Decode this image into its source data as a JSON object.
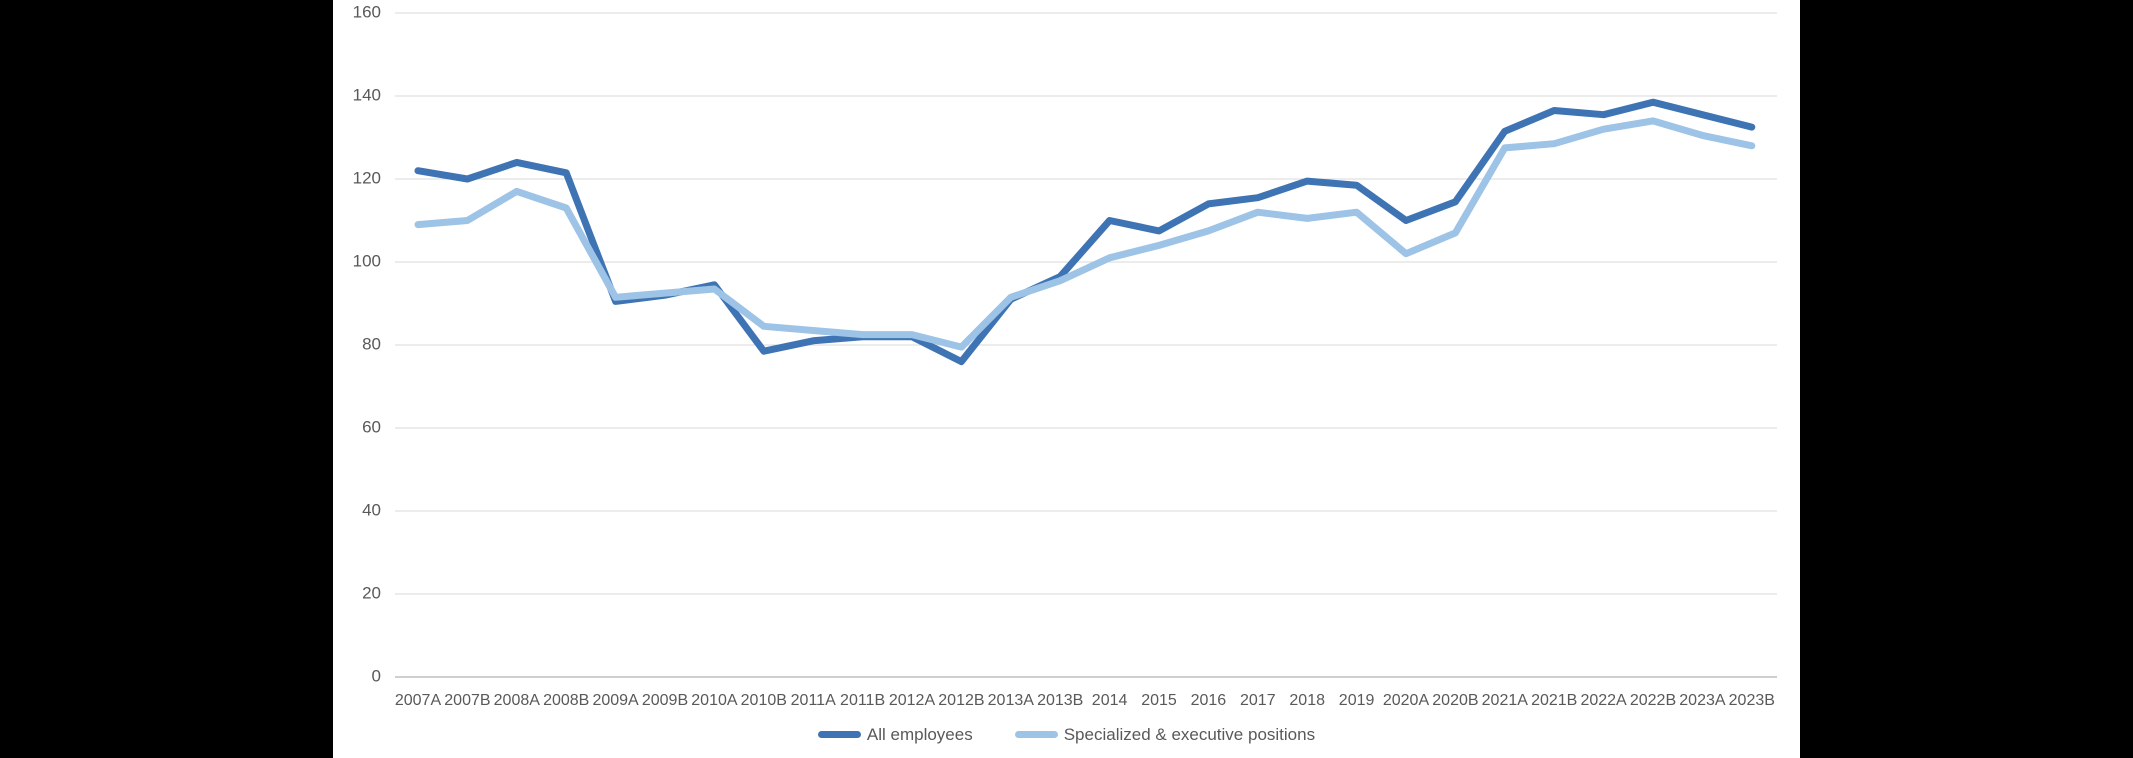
{
  "chart_data": {
    "type": "line",
    "title": "",
    "xlabel": "",
    "ylabel": "",
    "categories": [
      "2007A",
      "2007B",
      "2008A",
      "2008B",
      "2009A",
      "2009B",
      "2010A",
      "2010B",
      "2011A",
      "2011B",
      "2012A",
      "2012B",
      "2013A",
      "2013B",
      "2014",
      "2015",
      "2016",
      "2017",
      "2018",
      "2019",
      "2020A",
      "2020B",
      "2021A",
      "2021B",
      "2022A",
      "2022B",
      "2023A",
      "2023B"
    ],
    "series": [
      {
        "name": "All employees",
        "color": "#3E74B4",
        "values": [
          122,
          120,
          124,
          121.5,
          90.5,
          92,
          94.5,
          78.5,
          81,
          82,
          82,
          76,
          91,
          96.5,
          110,
          107.5,
          114,
          115.5,
          119.5,
          118.5,
          110,
          114.5,
          131.5,
          136.5,
          135.5,
          138.5,
          135.5,
          132.5
        ]
      },
      {
        "name": "Specialized & executive positions",
        "color": "#9DC3E6",
        "values": [
          109,
          110,
          117,
          113,
          91.5,
          92.5,
          93.5,
          84.5,
          83.5,
          82.5,
          82.5,
          79.5,
          91.5,
          95.5,
          101,
          104,
          107.5,
          112,
          110.5,
          112,
          102,
          107,
          127.5,
          128.5,
          132,
          134,
          130.5,
          128
        ]
      }
    ],
    "ylim": [
      0,
      160
    ],
    "yticks": [
      0,
      20,
      40,
      60,
      80,
      100,
      120,
      140,
      160
    ],
    "grid": true,
    "legend_position": "bottom-center"
  },
  "colors": {
    "background": "#000000",
    "panel": "#FFFFFF",
    "gridline": "#D9D9D9",
    "axis_line": "#BFBFBF",
    "tick_text": "#595959"
  }
}
